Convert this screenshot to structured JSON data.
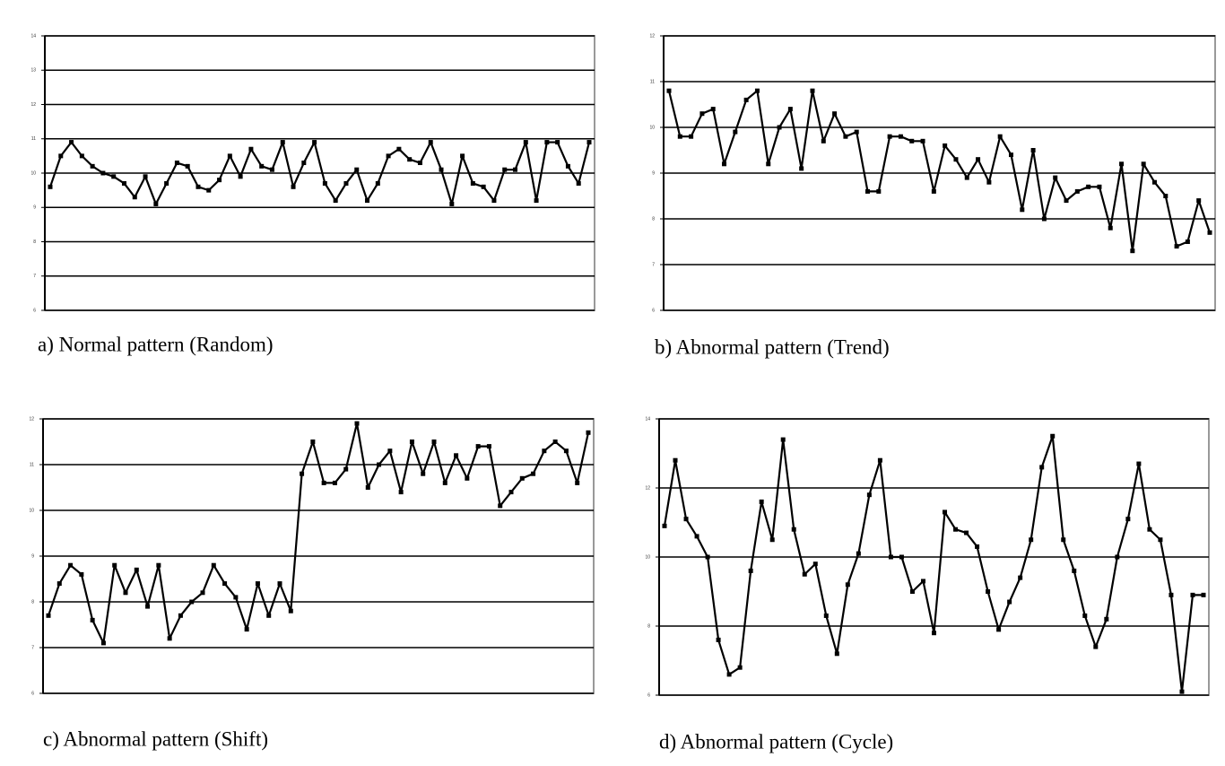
{
  "chart_data": [
    {
      "type": "line",
      "title": "a) Normal pattern (Random)",
      "color": "#000000",
      "ylim": [
        6,
        14
      ],
      "yticks": [
        6,
        7,
        8,
        9,
        10,
        11,
        12,
        13,
        14
      ],
      "grid": true,
      "values": [
        9.6,
        10.5,
        10.9,
        10.5,
        10.2,
        10.0,
        9.9,
        9.7,
        9.3,
        9.9,
        9.1,
        9.7,
        10.3,
        10.2,
        9.6,
        9.5,
        9.8,
        10.5,
        9.9,
        10.7,
        10.2,
        10.1,
        10.9,
        9.6,
        10.3,
        10.9,
        9.7,
        9.2,
        9.7,
        10.1,
        9.2,
        9.7,
        10.5,
        10.7,
        10.4,
        10.3,
        10.9,
        10.1,
        9.1,
        10.5,
        9.7,
        9.6,
        9.2,
        10.1,
        10.1,
        10.9,
        9.2,
        10.9,
        10.9,
        10.2,
        9.7,
        10.9
      ]
    },
    {
      "type": "line",
      "title": "b) Abnormal pattern (Trend)",
      "color": "#000000",
      "ylim": [
        6,
        12
      ],
      "yticks": [
        6,
        7,
        8,
        9,
        10,
        11,
        12
      ],
      "grid": true,
      "values": [
        10.8,
        9.8,
        9.8,
        10.3,
        10.4,
        9.2,
        9.9,
        10.6,
        10.8,
        9.2,
        10.0,
        10.4,
        9.1,
        10.8,
        9.7,
        10.3,
        9.8,
        9.9,
        8.6,
        8.6,
        9.8,
        9.8,
        9.7,
        9.7,
        8.6,
        9.6,
        9.3,
        8.9,
        9.3,
        8.8,
        9.8,
        9.4,
        8.2,
        9.5,
        8.0,
        8.9,
        8.4,
        8.6,
        8.7,
        8.7,
        7.8,
        9.2,
        7.3,
        9.2,
        8.8,
        8.5,
        7.4,
        7.5,
        8.4,
        7.7
      ]
    },
    {
      "type": "line",
      "title": "c) Abnormal pattern (Shift)",
      "color": "#000000",
      "ylim": [
        6,
        12
      ],
      "yticks": [
        6,
        7,
        8,
        9,
        10,
        11,
        12
      ],
      "grid": true,
      "values": [
        7.7,
        8.4,
        8.8,
        8.6,
        7.6,
        7.1,
        8.8,
        8.2,
        8.7,
        7.9,
        8.8,
        7.2,
        7.7,
        8.0,
        8.2,
        8.8,
        8.4,
        8.1,
        7.4,
        8.4,
        7.7,
        8.4,
        7.8,
        10.8,
        11.5,
        10.6,
        10.6,
        10.9,
        11.9,
        10.5,
        11.0,
        11.3,
        10.4,
        11.5,
        10.8,
        11.5,
        10.6,
        11.2,
        10.7,
        11.4,
        11.4,
        10.1,
        10.4,
        10.7,
        10.8,
        11.3,
        11.5,
        11.3,
        10.6,
        11.7
      ]
    },
    {
      "type": "line",
      "title": "d) Abnormal pattern (Cycle)",
      "color": "#000000",
      "ylim": [
        6,
        14
      ],
      "yticks": [
        6,
        8,
        10,
        12,
        14
      ],
      "grid": true,
      "values": [
        10.9,
        12.8,
        11.1,
        10.6,
        10.0,
        7.6,
        6.6,
        6.8,
        9.6,
        11.6,
        10.5,
        13.4,
        10.8,
        9.5,
        9.8,
        8.3,
        7.2,
        9.2,
        10.1,
        11.8,
        12.8,
        10.0,
        10.0,
        9.0,
        9.3,
        7.8,
        11.3,
        10.8,
        10.7,
        10.3,
        9.0,
        7.9,
        8.7,
        9.4,
        10.5,
        12.6,
        13.5,
        10.5,
        9.6,
        8.3,
        7.4,
        8.2,
        10.0,
        11.1,
        12.7,
        10.8,
        10.5,
        8.9,
        6.1,
        8.9,
        8.9
      ]
    }
  ]
}
